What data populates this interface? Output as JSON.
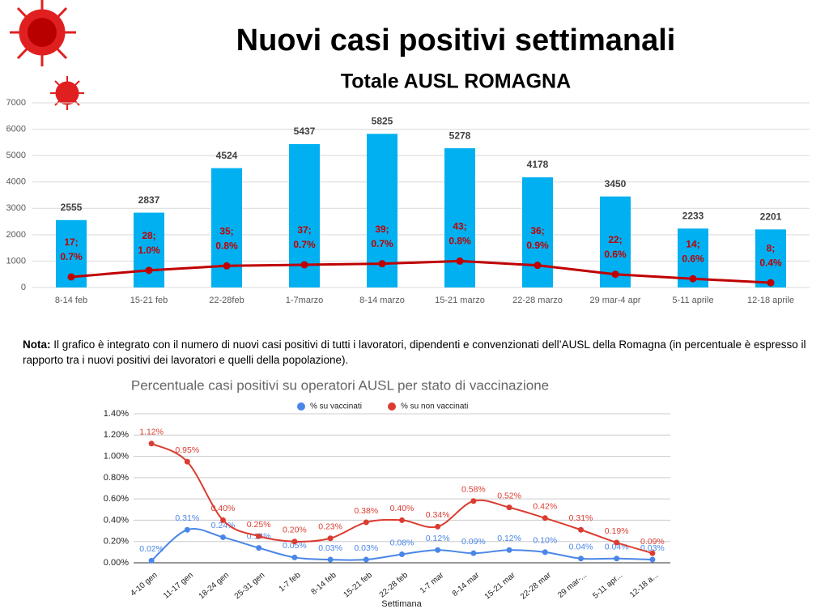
{
  "header": {
    "title": "Nuovi casi positivi settimanali",
    "subtitle": "Totale AUSL ROMAGNA"
  },
  "note": {
    "label": "Nota:",
    "text": "Il grafico è integrato con il numero di nuovi casi positivi di tutti i lavoratori, dipendenti e convenzionati dell’AUSL della Romagna (in percentuale è espresso il rapporto tra i nuovi positivi dei lavoratori e quelli della popolazione)."
  },
  "chart_data": [
    {
      "type": "bar",
      "categories": [
        "8-14 feb",
        "15-21 feb",
        "22-28feb",
        "1-7marzo",
        "8-14 marzo",
        "15-21 marzo",
        "22-28 marzo",
        "29 mar-4 apr",
        "5-11 aprile",
        "12-18 aprile"
      ],
      "values": [
        2555,
        2837,
        4524,
        5437,
        5825,
        5278,
        4178,
        3450,
        2233,
        2201
      ],
      "color": "#00b0f0",
      "bar_labels": [
        [
          "17;",
          "0.7%"
        ],
        [
          "28;",
          "1.0%"
        ],
        [
          "35;",
          "0.8%"
        ],
        [
          "37;",
          "0.7%"
        ],
        [
          "39;",
          "0.7%"
        ],
        [
          "43;",
          "0.8%"
        ],
        [
          "36;",
          "0.9%"
        ],
        [
          "22;",
          "0.6%"
        ],
        [
          "14;",
          "0.6%"
        ],
        [
          "8;",
          "0.4%"
        ]
      ],
      "line": {
        "color": "#c00000",
        "values": [
          400,
          650,
          820,
          860,
          900,
          1000,
          840,
          500,
          330,
          180
        ]
      },
      "ylim": [
        0,
        7000
      ],
      "yticks": [
        0,
        1000,
        2000,
        3000,
        4000,
        5000,
        6000,
        7000
      ],
      "grid": true
    },
    {
      "type": "line",
      "title": "Percentuale casi positivi su operatori AUSL per stato di vaccinazione",
      "x_label": "Settimana",
      "categories": [
        "4-10 gen",
        "11-17 gen",
        "18-24 gen",
        "25-31 gen",
        "1-7 feb",
        "8-14 feb",
        "15-21 feb",
        "22-28 feb",
        "1-7 mar",
        "8-14 mar",
        "15-21 mar",
        "22-28 mar",
        "29 mar-...",
        "5-11 apr...",
        "12-18 a..."
      ],
      "series": [
        {
          "name": "% su vaccinati",
          "color": "#4a86e8",
          "values": [
            0.02,
            0.31,
            0.24,
            0.14,
            0.05,
            0.03,
            0.03,
            0.08,
            0.12,
            0.09,
            0.12,
            0.1,
            0.04,
            0.04,
            0.03
          ],
          "value_labels": [
            "0.02%",
            "0.31%",
            "0.24%",
            "0.14%",
            "0.05%",
            "0.03%",
            "0.03%",
            "0.08%",
            "0.12%",
            "0.09%",
            "0.12%",
            "0.10%",
            "0.04%",
            "0.04%",
            "0.03%"
          ]
        },
        {
          "name": "% su non vaccinati",
          "color": "#db3c30",
          "values": [
            1.12,
            0.95,
            0.4,
            0.25,
            0.2,
            0.23,
            0.38,
            0.4,
            0.34,
            0.58,
            0.52,
            0.42,
            0.31,
            0.19,
            0.09
          ],
          "value_labels": [
            "1.12%",
            "0.95%",
            "0.40%",
            "0.25%",
            "0.20%",
            "0.23%",
            "0.38%",
            "0.40%",
            "0.34%",
            "0.58%",
            "0.52%",
            "0.42%",
            "0.31%",
            "0.19%",
            "0.09%"
          ]
        }
      ],
      "ylim": [
        0,
        1.4
      ],
      "yticks": [
        {
          "value": 0,
          "label": "0.00%"
        },
        {
          "value": 0.2,
          "label": "0.20%"
        },
        {
          "value": 0.4,
          "label": "0.40%"
        },
        {
          "value": 0.6,
          "label": "0.60%"
        },
        {
          "value": 0.8,
          "label": "0.80%"
        },
        {
          "value": 1.0,
          "label": "1.00%"
        },
        {
          "value": 1.2,
          "label": "1.20%"
        },
        {
          "value": 1.4,
          "label": "1.40%"
        }
      ],
      "grid": true,
      "legend": "top"
    }
  ]
}
